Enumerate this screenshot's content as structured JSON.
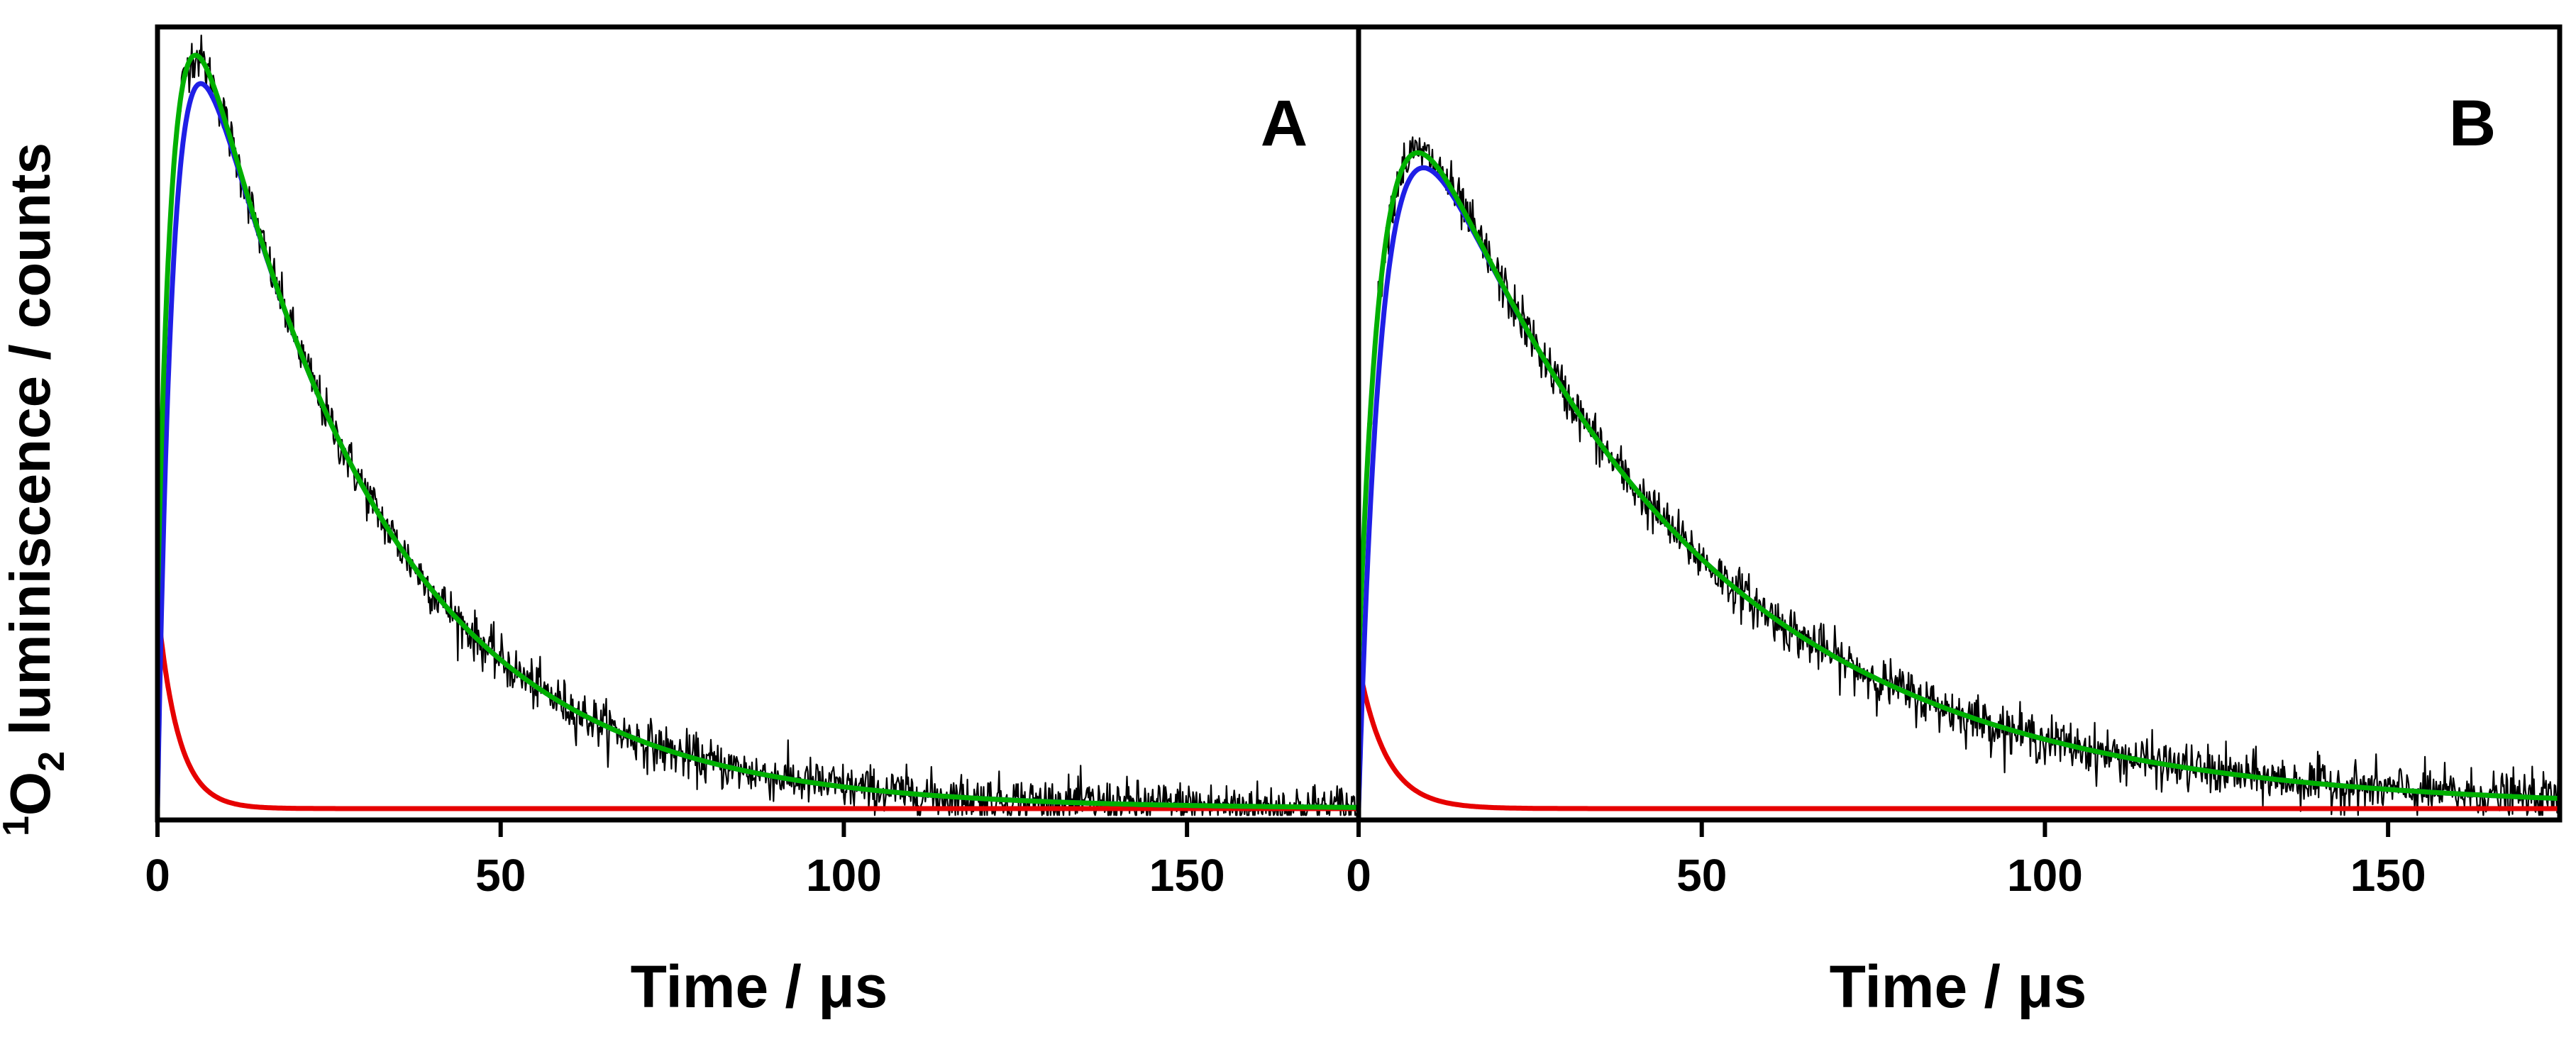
{
  "chart_data": {
    "type": "line",
    "ylabel": {
      "superscript": "1",
      "species": "O",
      "subscript": "2",
      "rest": " luminiscence / counts"
    },
    "colors": {
      "raw": "#000000",
      "fast": "#e60000",
      "slow": "#1f1fe6",
      "fit": "#00b000"
    },
    "panels": [
      {
        "label": "A",
        "xlabel": "Time / μs",
        "xlim": [
          0,
          175
        ],
        "xticks": [
          0,
          50,
          100,
          150
        ],
        "xtick_labels": [
          "0",
          "50",
          "100",
          "150"
        ],
        "ylim": [
          0,
          1.05
        ],
        "y_ticks_labeled": false,
        "series": [
          {
            "name": "raw data (noisy)",
            "color": "#000000",
            "model": "biexp",
            "params": {
              "A": 1.55,
              "t_rise": 2.4,
              "t_decay": 26,
              "C": 0.31,
              "t_fast": 3.0
            },
            "noise": 0.018
          },
          {
            "name": "fast component",
            "color": "#e60000",
            "model": "fast",
            "params": {
              "C": 0.31,
              "t_fast": 3.0
            }
          },
          {
            "name": "slow component",
            "color": "#1f1fe6",
            "model": "slow",
            "params": {
              "A": 1.55,
              "t_rise": 2.4,
              "t_decay": 26
            }
          },
          {
            "name": "total fit",
            "color": "#00b000",
            "model": "biexp",
            "params": {
              "A": 1.55,
              "t_rise": 2.4,
              "t_decay": 26,
              "C": 0.31,
              "t_fast": 3.0
            }
          }
        ]
      },
      {
        "label": "B",
        "xlabel": "Time / μs",
        "xlim": [
          0,
          175
        ],
        "xticks": [
          0,
          50,
          100,
          150
        ],
        "xtick_labels": [
          "0",
          "50",
          "100",
          "150"
        ],
        "ylim": [
          0,
          1.05
        ],
        "y_ticks_labeled": false,
        "series": [
          {
            "name": "raw data (noisy)",
            "color": "#000000",
            "model": "biexp",
            "params": {
              "A": 1.37,
              "t_rise": 3.6,
              "t_decay": 39,
              "C": 0.22,
              "t_fast": 4.0
            },
            "noise": 0.018
          },
          {
            "name": "fast component",
            "color": "#e60000",
            "model": "fast",
            "params": {
              "C": 0.22,
              "t_fast": 4.0
            }
          },
          {
            "name": "slow component",
            "color": "#1f1fe6",
            "model": "slow",
            "params": {
              "A": 1.37,
              "t_rise": 3.6,
              "t_decay": 39
            }
          },
          {
            "name": "total fit",
            "color": "#00b000",
            "model": "biexp",
            "params": {
              "A": 1.37,
              "t_rise": 3.6,
              "t_decay": 39,
              "C": 0.22,
              "t_fast": 4.0
            }
          }
        ]
      }
    ]
  }
}
